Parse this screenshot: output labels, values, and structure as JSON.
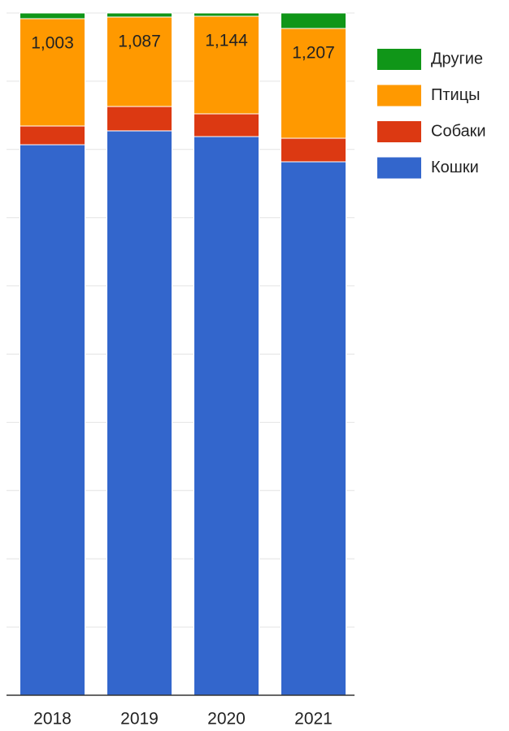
{
  "chart_data": {
    "type": "bar",
    "stacking": "percent",
    "categories": [
      "2018",
      "2019",
      "2020",
      "2021"
    ],
    "series": [
      {
        "name": "Кошки",
        "color": "#3366cc",
        "values": [
          5144,
          6858,
          6549,
          5865
        ]
      },
      {
        "name": "Собаки",
        "color": "#dc3912",
        "values": [
          175,
          296,
          267,
          259
        ]
      },
      {
        "name": "Птицы",
        "color": "#ff9900",
        "values": [
          1003,
          1087,
          1144,
          1207
        ],
        "value_labels": [
          "1,003",
          "1,087",
          "1,144",
          "1,207"
        ]
      },
      {
        "name": "Другие",
        "color": "#109618",
        "values": [
          53,
          49,
          38,
          170
        ]
      }
    ],
    "grid": true,
    "legend": "right"
  }
}
